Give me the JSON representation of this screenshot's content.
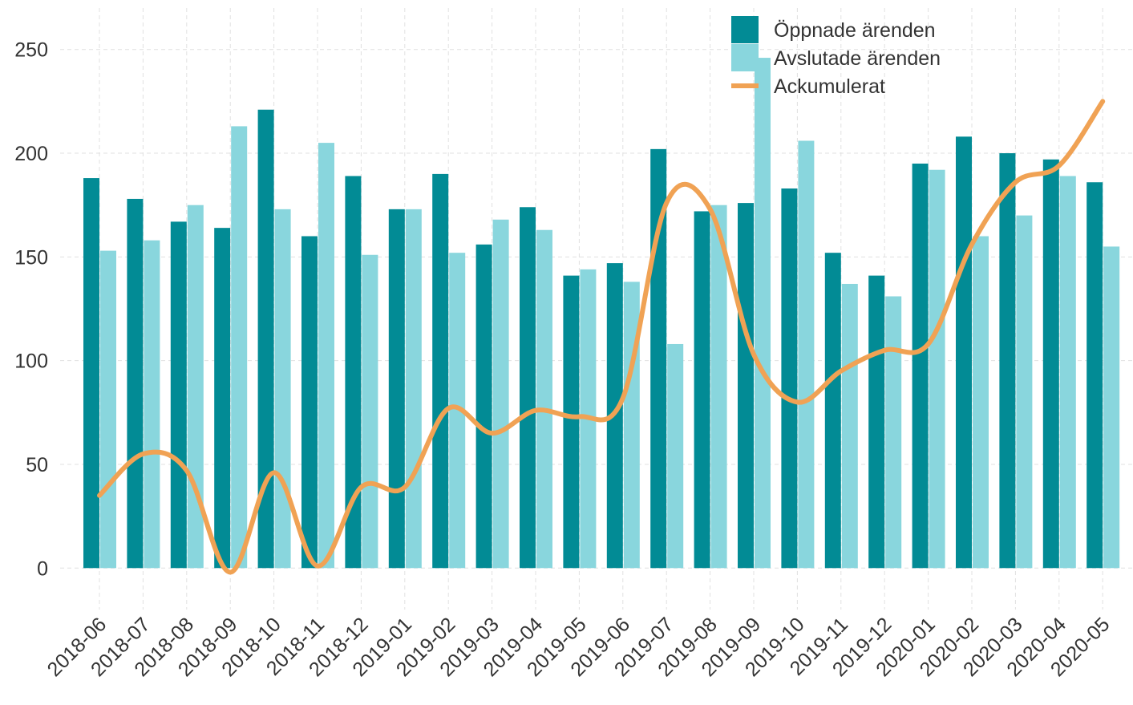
{
  "chart_data": {
    "type": "bar",
    "categories": [
      "2018-06",
      "2018-07",
      "2018-08",
      "2018-09",
      "2018-10",
      "2018-11",
      "2018-12",
      "2019-01",
      "2019-02",
      "2019-03",
      "2019-04",
      "2019-05",
      "2019-06",
      "2019-07",
      "2019-08",
      "2019-09",
      "2019-10",
      "2019-11",
      "2019-12",
      "2020-01",
      "2020-02",
      "2020-03",
      "2020-04",
      "2020-05"
    ],
    "series": [
      {
        "name": "Öppnade ärenden",
        "type": "bar",
        "color": "#028b95",
        "values": [
          188,
          178,
          167,
          164,
          221,
          160,
          189,
          173,
          190,
          156,
          174,
          141,
          147,
          202,
          172,
          176,
          183,
          152,
          141,
          195,
          208,
          200,
          197,
          186
        ]
      },
      {
        "name": "Avslutade ärenden",
        "type": "bar",
        "color": "#89d6dd",
        "values": [
          153,
          158,
          175,
          213,
          173,
          205,
          151,
          173,
          152,
          168,
          163,
          144,
          138,
          108,
          175,
          246,
          206,
          137,
          131,
          192,
          160,
          170,
          189,
          155
        ]
      },
      {
        "name": "Ackumulerat",
        "type": "line",
        "color": "#f0a254",
        "values": [
          35,
          55,
          47,
          -2,
          46,
          1,
          39,
          39,
          77,
          65,
          76,
          73,
          82,
          176,
          173,
          103,
          80,
          95,
          105,
          108,
          156,
          186,
          194,
          225
        ]
      }
    ],
    "ylim": [
      -20,
      270
    ],
    "yticks": [
      0,
      50,
      100,
      150,
      200,
      250
    ],
    "grid": true,
    "legend": "top-right"
  }
}
